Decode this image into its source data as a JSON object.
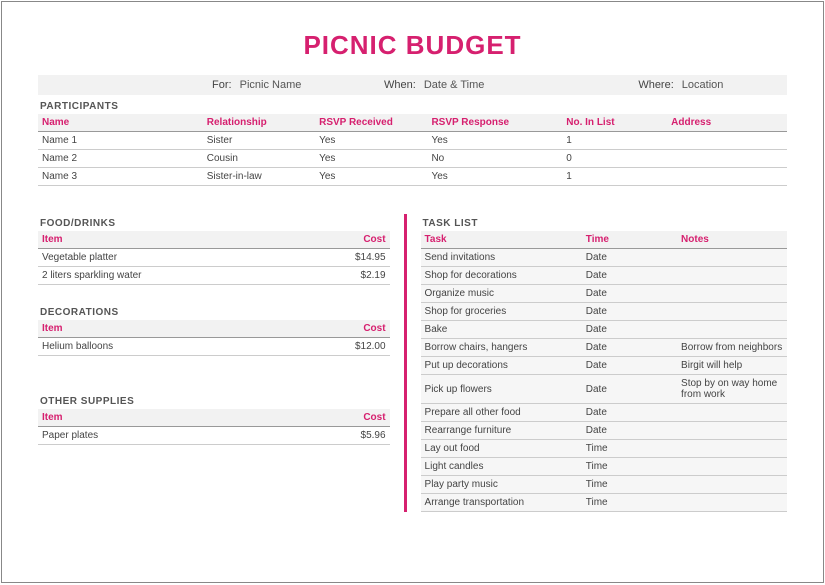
{
  "title": "PICNIC BUDGET",
  "colors": {
    "accent": "#d6206f",
    "bg_alt": "#f2f2f2",
    "border": "#ccc"
  },
  "info": {
    "for_label": "For:",
    "for_value": "Picnic Name",
    "when_label": "When:",
    "when_value": "Date & Time",
    "where_label": "Where:",
    "where_value": "Location"
  },
  "participants": {
    "section": "PARTICIPANTS",
    "headers": {
      "name": "Name",
      "rel": "Relationship",
      "rcv": "RSVP Received",
      "rsp": "RSVP Response",
      "no": "No. In List",
      "addr": "Address"
    },
    "rows": [
      {
        "name": "Name 1",
        "rel": "Sister",
        "rcv": "Yes",
        "rsp": "Yes",
        "no": "1",
        "addr": ""
      },
      {
        "name": "Name 2",
        "rel": "Cousin",
        "rcv": "Yes",
        "rsp": "No",
        "no": "0",
        "addr": ""
      },
      {
        "name": "Name 3",
        "rel": "Sister-in-law",
        "rcv": "Yes",
        "rsp": "Yes",
        "no": "1",
        "addr": ""
      }
    ]
  },
  "food": {
    "section": "FOOD/DRINKS",
    "headers": {
      "item": "Item",
      "cost": "Cost"
    },
    "rows": [
      {
        "item": "Vegetable platter",
        "cost": "$14.95"
      },
      {
        "item": "2 liters sparkling water",
        "cost": "$2.19"
      }
    ]
  },
  "decorations": {
    "section": "DECORATIONS",
    "headers": {
      "item": "Item",
      "cost": "Cost"
    },
    "rows": [
      {
        "item": "Helium balloons",
        "cost": "$12.00"
      }
    ]
  },
  "supplies": {
    "section": "OTHER SUPPLIES",
    "headers": {
      "item": "Item",
      "cost": "Cost"
    },
    "rows": [
      {
        "item": "Paper plates",
        "cost": "$5.96"
      }
    ]
  },
  "tasks": {
    "section": "TASK LIST",
    "headers": {
      "task": "Task",
      "time": "Time",
      "notes": "Notes"
    },
    "rows": [
      {
        "task": "Send invitations",
        "time": "Date",
        "notes": ""
      },
      {
        "task": "Shop for decorations",
        "time": "Date",
        "notes": ""
      },
      {
        "task": "Organize music",
        "time": "Date",
        "notes": ""
      },
      {
        "task": "Shop for groceries",
        "time": "Date",
        "notes": ""
      },
      {
        "task": "Bake",
        "time": "Date",
        "notes": ""
      },
      {
        "task": "Borrow chairs, hangers",
        "time": "Date",
        "notes": "Borrow from neighbors"
      },
      {
        "task": "Put up decorations",
        "time": "Date",
        "notes": "Birgit will help"
      },
      {
        "task": "Pick up flowers",
        "time": "Date",
        "notes": "Stop by on way home from work"
      },
      {
        "task": "Prepare all other food",
        "time": "Date",
        "notes": ""
      },
      {
        "task": "Rearrange furniture",
        "time": "Date",
        "notes": ""
      },
      {
        "task": "Lay out food",
        "time": "Time",
        "notes": ""
      },
      {
        "task": "Light candles",
        "time": "Time",
        "notes": ""
      },
      {
        "task": "Play party music",
        "time": "Time",
        "notes": ""
      },
      {
        "task": "Arrange transportation",
        "time": "Time",
        "notes": ""
      }
    ]
  }
}
